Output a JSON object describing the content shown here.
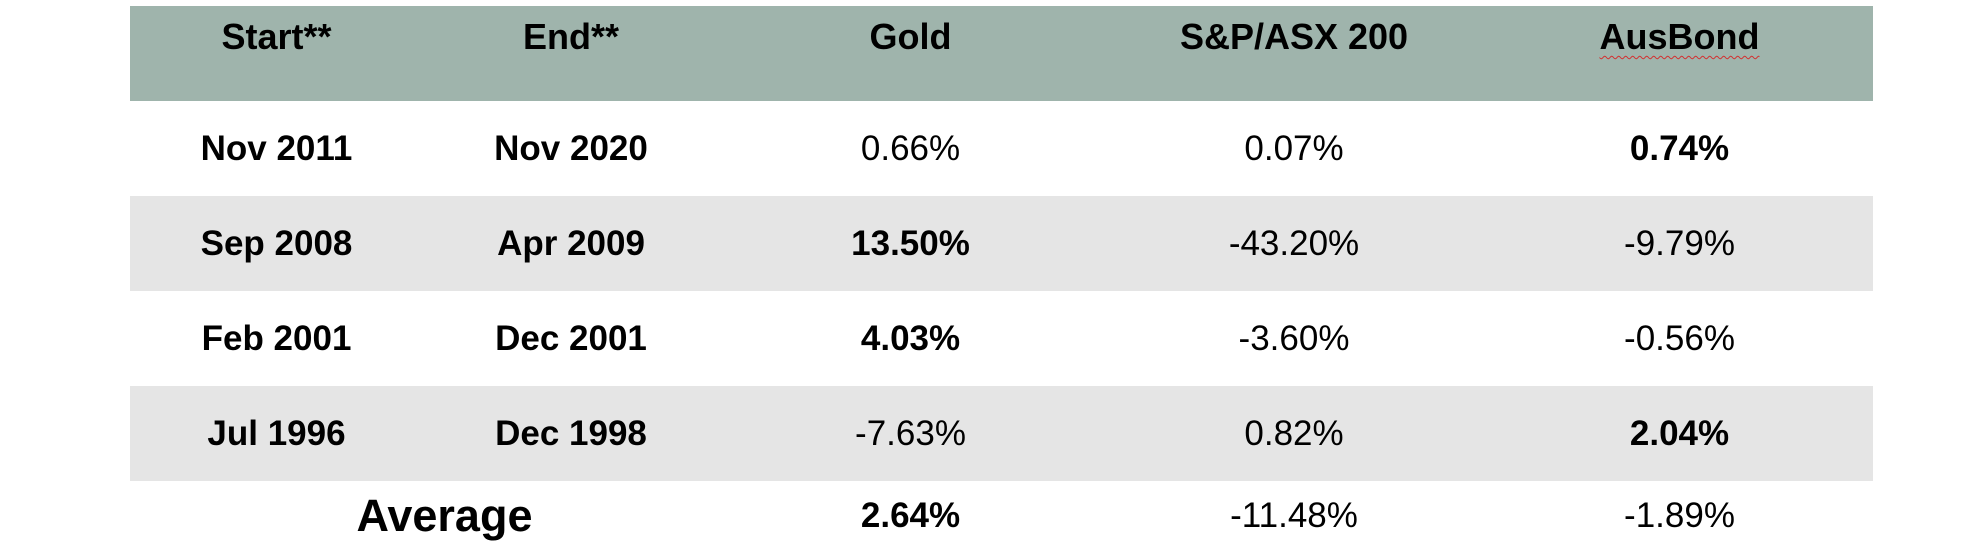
{
  "headers": [
    "Start**",
    "End**",
    "Gold",
    "S&P/ASX 200",
    "AusBond"
  ],
  "rows": [
    {
      "start": "Nov 2011",
      "end": "Nov 2020",
      "gold": "0.66%",
      "asx": "0.07%",
      "ausbond": "0.74%"
    },
    {
      "start": "Sep 2008",
      "end": "Apr 2009",
      "gold": "13.50%",
      "asx": "-43.20%",
      "ausbond": "-9.79%"
    },
    {
      "start": "Feb 2001",
      "end": "Dec 2001",
      "gold": "4.03%",
      "asx": "-3.60%",
      "ausbond": "-0.56%"
    },
    {
      "start": "Jul 1996",
      "end": "Dec 1998",
      "gold": "-7.63%",
      "asx": "0.82%",
      "ausbond": "2.04%"
    }
  ],
  "average": {
    "label": "Average",
    "gold": "2.64%",
    "asx": "-11.48%",
    "ausbond": "-1.89%"
  },
  "colors": {
    "header_bg": "#9fb4ac",
    "shaded_row": "#e5e5e5",
    "spellcheck_underline": "#d32f2f"
  }
}
